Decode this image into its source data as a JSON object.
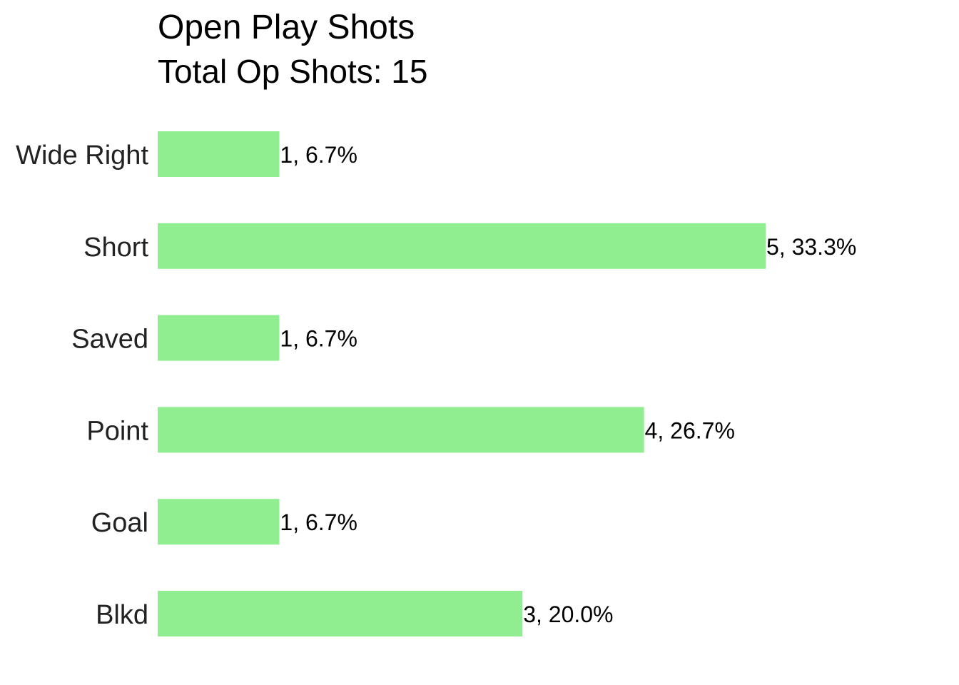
{
  "chart_data": {
    "type": "bar",
    "orientation": "horizontal",
    "title": "Open Play Shots",
    "subtitle": "Total Op Shots: 15",
    "categories": [
      "Wide Right",
      "Short",
      "Saved",
      "Point",
      "Goal",
      "Blkd"
    ],
    "values": [
      1,
      5,
      1,
      4,
      1,
      3
    ],
    "data_labels": [
      "1, 6.7%",
      "5, 33.3%",
      "1, 6.7%",
      "4, 26.7%",
      "1, 6.7%",
      "3, 20.0%"
    ],
    "bar_color": "#90ee90",
    "xlim": [
      0,
      5
    ],
    "grid": false,
    "legend": "none",
    "xlabel": "",
    "ylabel": ""
  }
}
